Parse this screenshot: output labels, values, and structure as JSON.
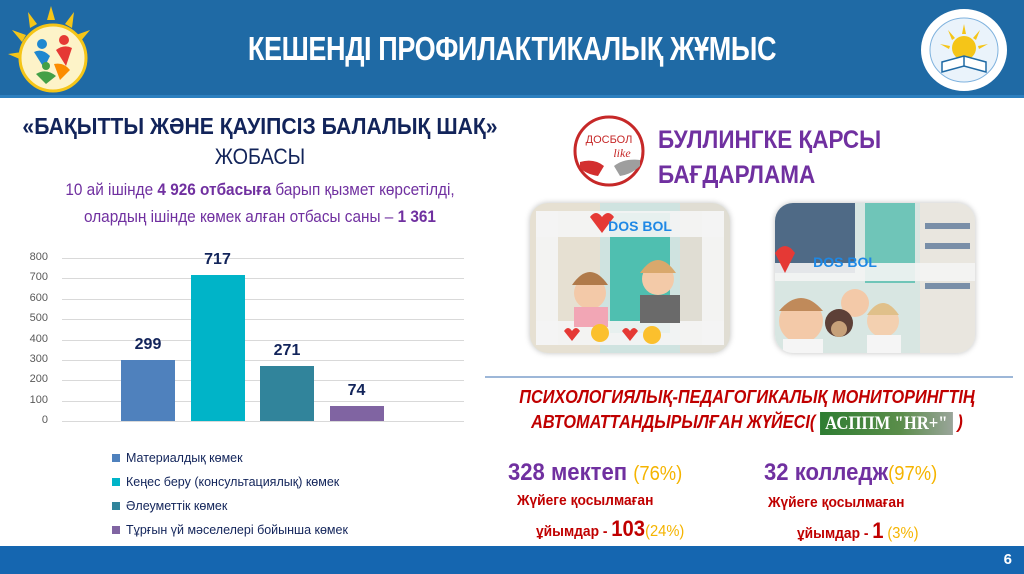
{
  "header": {
    "title": "КЕШЕНДІ ПРОФИЛАКТИКАЛЫҚ ЖҰМЫС",
    "background": "#1f6aa5"
  },
  "project": {
    "title": "«БАҚЫТТЫ ЖӘНЕ ҚАУІПСІЗ БАЛАЛЫҚ ШАҚ»",
    "subtitle": "ЖОБАСЫ",
    "line1_pre": "10 ай ішінде ",
    "line1_bold": "4 926 отбасыға",
    "line1_post": " барып қызмет көрсетілді,",
    "line2_pre": "олардың ішінде көмек алған отбасы саны – ",
    "line2_bold": "1 361"
  },
  "chart_data": {
    "type": "bar",
    "title": "",
    "xlabel": "",
    "ylabel": "",
    "ylim": [
      0,
      800
    ],
    "yticks": [
      0,
      100,
      200,
      300,
      400,
      500,
      600,
      700,
      800
    ],
    "grid": true,
    "legend_position": "bottom",
    "categories": [
      "Материалдық көмек",
      "Кеңес беру (консультациялық) көмек",
      "Әлеуметтік көмек",
      "Тұрғын үй мәселелері бойынша көмек"
    ],
    "values": [
      299,
      717,
      271,
      74
    ],
    "colors": [
      "#4f81bd",
      "#00b4c8",
      "#31849b",
      "#8064a2"
    ]
  },
  "bullying": {
    "logo_text": "ДОСБОЛ",
    "logo_sub": "like",
    "title_line1": "БУЛЛИНГКЕ ҚАРСЫ",
    "title_line2": "БАҒДАРЛАМА",
    "photo_caption": "DOS BOL"
  },
  "monitoring": {
    "title_line1": "ПСИХОЛОГИЯЛЫҚ-ПЕДАГОГИКАЛЫҚ МОНИТОРИНГТІҢ",
    "title_line2_pre": "АВТОМАТТАНДЫРЫЛҒАН ЖҮЙЕСІ( ",
    "badge": "АСППМ \"HR+\"",
    "title_line2_post": " )"
  },
  "stats": {
    "schools": {
      "count": "328 мектеп",
      "pct": "(76%)"
    },
    "schools_unconnected": {
      "label1": "Жүйеге қосылмаған",
      "label2": "ұйымдар - ",
      "num": "103",
      "pct": "(24%)"
    },
    "colleges": {
      "count": "32 колледж",
      "pct": "(97%)"
    },
    "colleges_unconnected": {
      "label1": "Жүйеге қосылмаған",
      "label2": "ұйымдар - ",
      "num": "1",
      "pct": "(3%)"
    }
  },
  "footer": {
    "page_number": "6"
  }
}
